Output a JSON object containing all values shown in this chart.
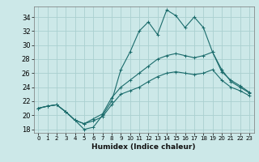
{
  "title": "",
  "xlabel": "Humidex (Indice chaleur)",
  "xlim": [
    -0.5,
    23.5
  ],
  "ylim": [
    17.5,
    35.5
  ],
  "xticks": [
    0,
    1,
    2,
    3,
    4,
    5,
    6,
    7,
    8,
    9,
    10,
    11,
    12,
    13,
    14,
    15,
    16,
    17,
    18,
    19,
    20,
    21,
    22,
    23
  ],
  "yticks": [
    18,
    20,
    22,
    24,
    26,
    28,
    30,
    32,
    34
  ],
  "bg_color": "#cce8e8",
  "grid_color": "#aad0d0",
  "line_color": "#1a6b6b",
  "line1_y": [
    21,
    21.3,
    21.5,
    20.5,
    19.3,
    18.0,
    18.3,
    20.0,
    22.0,
    26.5,
    29.0,
    32.0,
    33.3,
    31.5,
    35.0,
    34.2,
    32.5,
    34.0,
    32.5,
    29.0,
    26.5,
    24.8,
    24.0,
    23.2
  ],
  "line2_y": [
    21,
    21.3,
    21.5,
    20.5,
    19.3,
    18.8,
    19.5,
    20.2,
    22.5,
    24.0,
    25.0,
    26.0,
    27.0,
    28.0,
    28.5,
    28.8,
    28.5,
    28.2,
    28.5,
    29.0,
    26.2,
    25.0,
    24.2,
    23.3
  ],
  "line3_y": [
    21,
    21.3,
    21.5,
    20.5,
    19.3,
    18.8,
    19.2,
    19.8,
    21.5,
    23.0,
    23.5,
    24.0,
    24.8,
    25.5,
    26.0,
    26.2,
    26.0,
    25.8,
    26.0,
    26.5,
    25.0,
    24.0,
    23.5,
    22.8
  ]
}
